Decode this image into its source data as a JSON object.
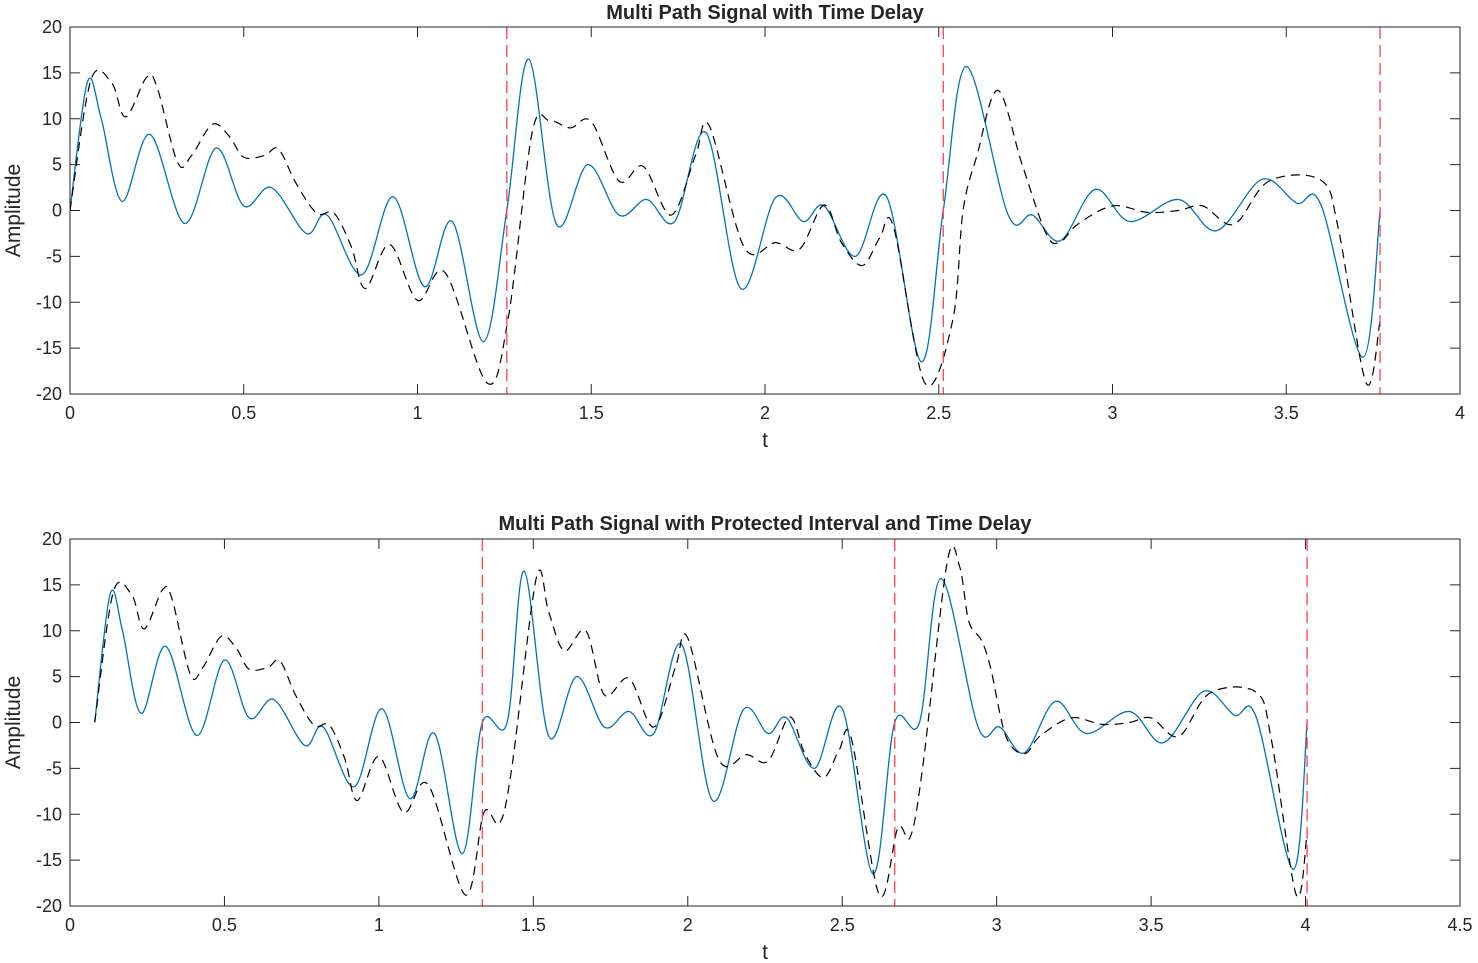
{
  "chart_data": [
    {
      "type": "line",
      "title": "Multi Path Signal with Time Delay",
      "xlabel": "t",
      "ylabel": "Amplitude",
      "xlim": [
        0,
        4
      ],
      "ylim": [
        -20,
        20
      ],
      "xticks": [
        "0",
        "0.5",
        "1",
        "1.5",
        "2",
        "2.5",
        "3",
        "3.5",
        "4"
      ],
      "yticks": [
        "20",
        "15",
        "10",
        "5",
        "0",
        "-5",
        "-10",
        "-15",
        "-20"
      ],
      "grid": false,
      "colors": {
        "solid": "#0072BD",
        "dashed": "#000000",
        "markers": "#FF4040"
      },
      "vlines": [
        1.257,
        2.513,
        3.77
      ],
      "series": [
        {
          "style": "solid",
          "points": [
            [
              0,
              0
            ],
            [
              0.05,
              14
            ],
            [
              0.09,
              10
            ],
            [
              0.15,
              1
            ],
            [
              0.23,
              8.3
            ],
            [
              0.33,
              -1.4
            ],
            [
              0.42,
              6.8
            ],
            [
              0.5,
              0.5
            ],
            [
              0.58,
              2.5
            ],
            [
              0.68,
              -2.5
            ],
            [
              0.74,
              -0.5
            ],
            [
              0.84,
              -7
            ],
            [
              0.93,
              1.5
            ],
            [
              1.02,
              -8.3
            ],
            [
              1.1,
              -1.2
            ],
            [
              1.19,
              -14.3
            ],
            [
              1.257,
              0
            ],
            [
              1.32,
              16.5
            ],
            [
              1.4,
              -1.5
            ],
            [
              1.49,
              5
            ],
            [
              1.58,
              -0.5
            ],
            [
              1.66,
              1.2
            ],
            [
              1.74,
              -1.2
            ],
            [
              1.83,
              8.5
            ],
            [
              1.93,
              -8.5
            ],
            [
              2.03,
              1.4
            ],
            [
              2.11,
              -1.2
            ],
            [
              2.17,
              0.5
            ],
            [
              2.26,
              -5
            ],
            [
              2.35,
              1.5
            ],
            [
              2.45,
              -16.5
            ],
            [
              2.513,
              0
            ],
            [
              2.58,
              15.7
            ],
            [
              2.7,
              -0.5
            ],
            [
              2.77,
              -0.5
            ],
            [
              2.85,
              -3.3
            ],
            [
              2.95,
              2.3
            ],
            [
              3.05,
              -1.2
            ],
            [
              3.19,
              1.2
            ],
            [
              3.3,
              -2.2
            ],
            [
              3.43,
              3.4
            ],
            [
              3.53,
              0.8
            ],
            [
              3.6,
              0.6
            ],
            [
              3.72,
              -16
            ],
            [
              3.77,
              0
            ]
          ]
        },
        {
          "style": "dashed",
          "points": [
            [
              0,
              0
            ],
            [
              0.06,
              14.2
            ],
            [
              0.12,
              13.9
            ],
            [
              0.16,
              10.2
            ],
            [
              0.22,
              14.5
            ],
            [
              0.25,
              13.5
            ],
            [
              0.31,
              5.2
            ],
            [
              0.35,
              6
            ],
            [
              0.41,
              9.4
            ],
            [
              0.46,
              8
            ],
            [
              0.5,
              5.8
            ],
            [
              0.56,
              6
            ],
            [
              0.6,
              6.7
            ],
            [
              0.65,
              3
            ],
            [
              0.71,
              -0.3
            ],
            [
              0.76,
              -0.3
            ],
            [
              0.81,
              -4
            ],
            [
              0.85,
              -8.5
            ],
            [
              0.92,
              -3.7
            ],
            [
              1,
              -9.8
            ],
            [
              1.08,
              -6.8
            ],
            [
              1.2,
              -18.8
            ],
            [
              1.26,
              -12
            ],
            [
              1.33,
              8.5
            ],
            [
              1.38,
              9.8
            ],
            [
              1.44,
              9
            ],
            [
              1.5,
              9.7
            ],
            [
              1.58,
              3.2
            ],
            [
              1.65,
              4.8
            ],
            [
              1.73,
              -0.5
            ],
            [
              1.8,
              6
            ],
            [
              1.84,
              9.2
            ],
            [
              1.94,
              -4
            ],
            [
              2.03,
              -3.5
            ],
            [
              2.1,
              -4.2
            ],
            [
              2.17,
              0.6
            ],
            [
              2.22,
              -3.5
            ],
            [
              2.28,
              -6
            ],
            [
              2.33,
              -3
            ],
            [
              2.37,
              -1.8
            ],
            [
              2.46,
              -18.8
            ],
            [
              2.54,
              -12
            ],
            [
              2.57,
              0
            ],
            [
              2.61,
              6
            ],
            [
              2.67,
              13.1
            ],
            [
              2.74,
              5
            ],
            [
              2.81,
              -2.6
            ],
            [
              2.85,
              -3.4
            ],
            [
              2.9,
              -1.5
            ],
            [
              3,
              0.5
            ],
            [
              3.1,
              -0.2
            ],
            [
              3.19,
              0
            ],
            [
              3.26,
              0.5
            ],
            [
              3.35,
              -1.5
            ],
            [
              3.45,
              3.2
            ],
            [
              3.6,
              3.3
            ],
            [
              3.65,
              -2
            ],
            [
              3.73,
              -18.8
            ],
            [
              3.77,
              -12
            ]
          ]
        }
      ]
    },
    {
      "type": "line",
      "title": "Multi Path Signal with Protected Interval and Time Delay",
      "xlabel": "t",
      "ylabel": "Amplitude",
      "xlim": [
        0,
        4.5
      ],
      "ylim": [
        -20,
        20
      ],
      "xticks": [
        "0",
        "0.5",
        "1",
        "1.5",
        "2",
        "2.5",
        "3",
        "3.5",
        "4",
        "4.5"
      ],
      "yticks": [
        "20",
        "15",
        "10",
        "5",
        "0",
        "-5",
        "-10",
        "-15",
        "-20"
      ],
      "grid": false,
      "colors": {
        "solid": "#0072BD",
        "dashed": "#000000",
        "markers": "#FF4040"
      },
      "vlines": [
        1.335,
        2.67,
        4.005
      ],
      "series": [
        {
          "style": "solid",
          "points": [
            [
              0.08,
              0
            ],
            [
              0.13,
              14
            ],
            [
              0.17,
              10
            ],
            [
              0.23,
              1
            ],
            [
              0.31,
              8.3
            ],
            [
              0.41,
              -1.4
            ],
            [
              0.5,
              6.8
            ],
            [
              0.58,
              0.5
            ],
            [
              0.66,
              2.5
            ],
            [
              0.76,
              -2.5
            ],
            [
              0.82,
              -0.5
            ],
            [
              0.92,
              -7
            ],
            [
              1.01,
              1.5
            ],
            [
              1.1,
              -8.3
            ],
            [
              1.18,
              -1.2
            ],
            [
              1.27,
              -14.3
            ],
            [
              1.335,
              0
            ],
            [
              1.415,
              0
            ],
            [
              1.47,
              16.5
            ],
            [
              1.55,
              -1.5
            ],
            [
              1.64,
              5
            ],
            [
              1.73,
              -0.5
            ],
            [
              1.81,
              1.2
            ],
            [
              1.89,
              -1.2
            ],
            [
              1.98,
              8.5
            ],
            [
              2.08,
              -8.5
            ],
            [
              2.18,
              1.4
            ],
            [
              2.26,
              -1.2
            ],
            [
              2.32,
              0.5
            ],
            [
              2.41,
              -5
            ],
            [
              2.5,
              1.5
            ],
            [
              2.6,
              -16.5
            ],
            [
              2.67,
              0
            ],
            [
              2.75,
              0
            ],
            [
              2.82,
              15.7
            ],
            [
              2.94,
              -0.5
            ],
            [
              3.01,
              -0.5
            ],
            [
              3.09,
              -3.3
            ],
            [
              3.19,
              2.3
            ],
            [
              3.29,
              -1.2
            ],
            [
              3.43,
              1.2
            ],
            [
              3.54,
              -2.2
            ],
            [
              3.67,
              3.4
            ],
            [
              3.77,
              0.8
            ],
            [
              3.84,
              0.6
            ],
            [
              3.96,
              -16
            ],
            [
              4.005,
              0
            ]
          ]
        },
        {
          "style": "dashed",
          "points": [
            [
              0.08,
              0
            ],
            [
              0.14,
              14.2
            ],
            [
              0.2,
              13.9
            ],
            [
              0.24,
              10.2
            ],
            [
              0.3,
              14.5
            ],
            [
              0.33,
              13.5
            ],
            [
              0.39,
              5.2
            ],
            [
              0.43,
              6
            ],
            [
              0.49,
              9.4
            ],
            [
              0.54,
              8
            ],
            [
              0.58,
              5.8
            ],
            [
              0.64,
              6
            ],
            [
              0.68,
              6.7
            ],
            [
              0.73,
              3
            ],
            [
              0.79,
              -0.3
            ],
            [
              0.84,
              -0.3
            ],
            [
              0.89,
              -4
            ],
            [
              0.93,
              -8.5
            ],
            [
              1,
              -3.7
            ],
            [
              1.08,
              -9.8
            ],
            [
              1.16,
              -6.8
            ],
            [
              1.28,
              -18.8
            ],
            [
              1.34,
              -9.8
            ],
            [
              1.39,
              -11
            ],
            [
              1.43,
              -5
            ],
            [
              1.51,
              15.8
            ],
            [
              1.55,
              12
            ],
            [
              1.6,
              7.8
            ],
            [
              1.67,
              10
            ],
            [
              1.73,
              3
            ],
            [
              1.81,
              4.8
            ],
            [
              1.89,
              -0.5
            ],
            [
              1.96,
              6
            ],
            [
              2,
              9.2
            ],
            [
              2.1,
              -4
            ],
            [
              2.19,
              -3.5
            ],
            [
              2.26,
              -4.2
            ],
            [
              2.33,
              0.6
            ],
            [
              2.38,
              -3.5
            ],
            [
              2.44,
              -6
            ],
            [
              2.49,
              -3
            ],
            [
              2.53,
              -1.8
            ],
            [
              2.62,
              -18.8
            ],
            [
              2.68,
              -11.5
            ],
            [
              2.72,
              -12.5
            ],
            [
              2.76,
              -5
            ],
            [
              2.84,
              17.5
            ],
            [
              2.88,
              17
            ],
            [
              2.91,
              11
            ],
            [
              2.95,
              9
            ],
            [
              2.98,
              6
            ],
            [
              3.03,
              -1.5
            ],
            [
              3.09,
              -3.4
            ],
            [
              3.14,
              -1.5
            ],
            [
              3.24,
              0.5
            ],
            [
              3.34,
              -0.2
            ],
            [
              3.43,
              0
            ],
            [
              3.5,
              0.5
            ],
            [
              3.59,
              -1.5
            ],
            [
              3.69,
              3.2
            ],
            [
              3.84,
              3.3
            ],
            [
              3.89,
              -2
            ],
            [
              3.97,
              -18.8
            ],
            [
              4.005,
              -12
            ]
          ]
        }
      ]
    }
  ]
}
